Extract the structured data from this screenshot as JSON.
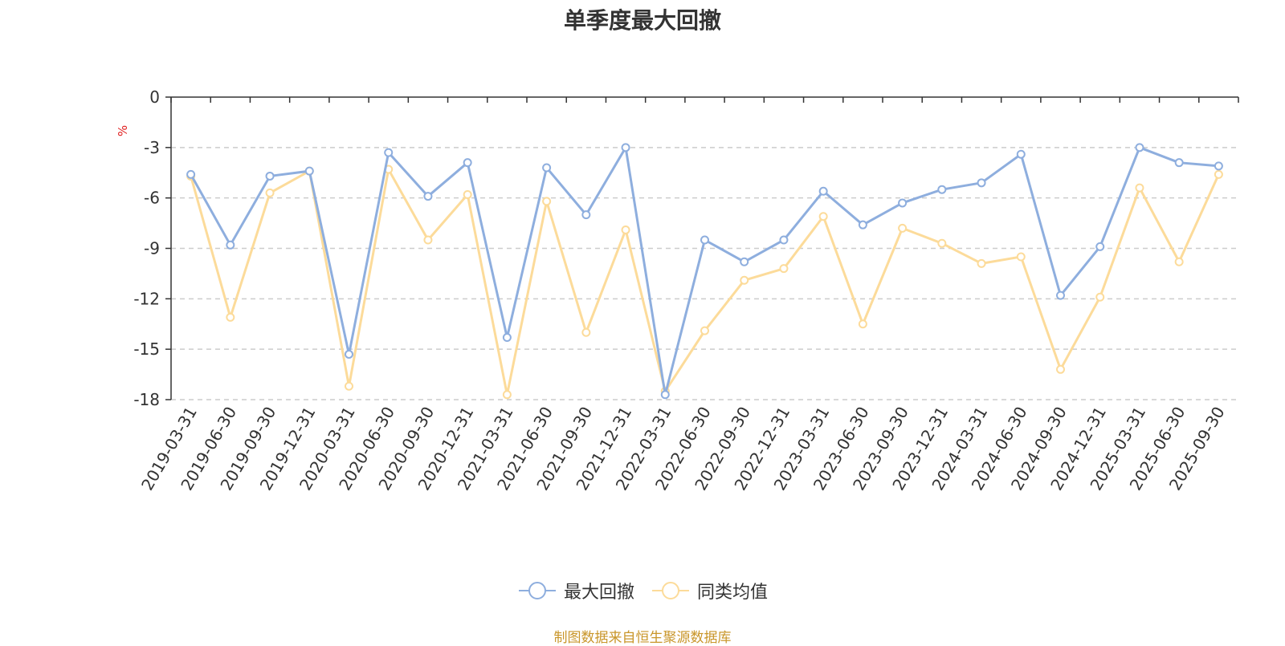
{
  "chart_data": {
    "type": "line",
    "title": "单季度最大回撤",
    "ylabel": "%",
    "ylim": [
      -18,
      0
    ],
    "yticks": [
      0,
      -3,
      -6,
      -9,
      -12,
      -15,
      -18
    ],
    "categories": [
      "2019-03-31",
      "2019-06-30",
      "2019-09-30",
      "2019-12-31",
      "2020-03-31",
      "2020-06-30",
      "2020-09-30",
      "2020-12-31",
      "2021-03-31",
      "2021-06-30",
      "2021-09-30",
      "2021-12-31",
      "2022-03-31",
      "2022-06-30",
      "2022-09-30",
      "2022-12-31",
      "2023-03-31",
      "2023-06-30",
      "2023-09-30",
      "2023-12-31",
      "2024-03-31",
      "2024-06-30",
      "2024-09-30",
      "2024-12-31",
      "2025-03-31",
      "2025-06-30",
      "2025-09-30"
    ],
    "series": [
      {
        "name": "最大回撤",
        "color": "#8eaede",
        "values": [
          -4.6,
          -8.8,
          -4.7,
          -4.4,
          -15.3,
          -3.3,
          -5.9,
          -3.9,
          -14.3,
          -4.2,
          -7.0,
          -3.0,
          -17.7,
          -8.5,
          -9.8,
          -8.5,
          -5.6,
          -7.6,
          -6.3,
          -5.5,
          -5.1,
          -3.4,
          -11.8,
          -8.9,
          -3.0,
          -3.9,
          -4.1
        ]
      },
      {
        "name": "同类均值",
        "color": "#fcdb9a",
        "values": [
          -4.7,
          -13.1,
          -5.7,
          -4.4,
          -17.2,
          -4.3,
          -8.5,
          -5.8,
          -17.7,
          -6.2,
          -14.0,
          -7.9,
          -17.5,
          -13.9,
          -10.9,
          -10.2,
          -7.1,
          -13.5,
          -7.8,
          -8.7,
          -9.9,
          -9.5,
          -16.2,
          -11.9,
          -5.4,
          -9.8,
          -4.6
        ]
      }
    ],
    "grid": true,
    "legend": "bottom"
  },
  "source_text": "制图数据来自恒生聚源数据库"
}
